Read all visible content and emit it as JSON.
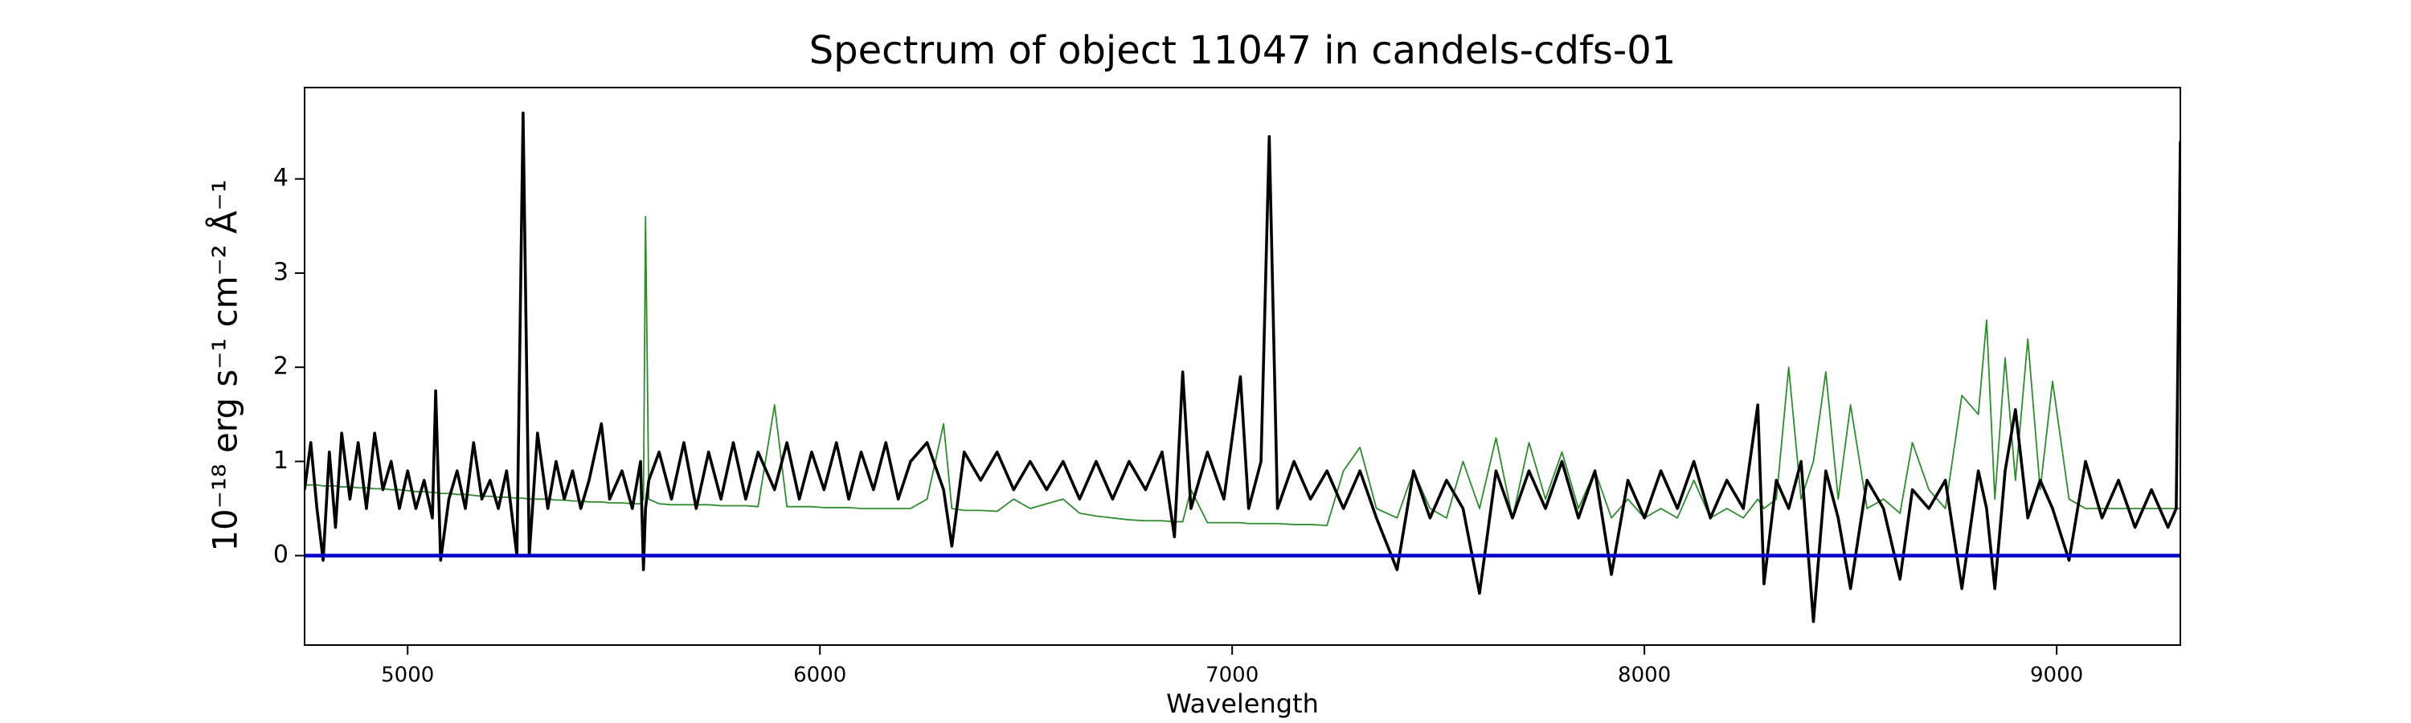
{
  "chart_data": {
    "type": "line",
    "title": "Spectrum of object 11047 in candels-cdfs-01",
    "xlabel": "Wavelength",
    "ylabel": "10⁻¹⁸ erg s⁻¹ cm⁻² Å⁻¹",
    "xlim": [
      4750,
      9300
    ],
    "ylim": [
      -0.95,
      4.97
    ],
    "xticks": [
      5000,
      6000,
      7000,
      8000,
      9000
    ],
    "yticks": [
      0,
      1,
      2,
      3,
      4
    ],
    "grid": false,
    "x": [
      4750,
      4765,
      4780,
      4795,
      4810,
      4825,
      4840,
      4860,
      4880,
      4900,
      4920,
      4940,
      4960,
      4980,
      5000,
      5020,
      5040,
      5060,
      5068,
      5080,
      5100,
      5120,
      5140,
      5160,
      5180,
      5200,
      5220,
      5240,
      5265,
      5280,
      5295,
      5315,
      5340,
      5360,
      5380,
      5400,
      5420,
      5440,
      5470,
      5490,
      5520,
      5545,
      5565,
      5572,
      5577,
      5585,
      5610,
      5640,
      5670,
      5700,
      5730,
      5760,
      5790,
      5820,
      5850,
      5890,
      5920,
      5950,
      5980,
      6010,
      6040,
      6070,
      6100,
      6130,
      6160,
      6190,
      6220,
      6260,
      6300,
      6320,
      6350,
      6390,
      6430,
      6470,
      6510,
      6550,
      6590,
      6630,
      6670,
      6710,
      6750,
      6790,
      6830,
      6860,
      6880,
      6900,
      6940,
      6980,
      7020,
      7040,
      7070,
      7090,
      7110,
      7150,
      7190,
      7230,
      7270,
      7310,
      7350,
      7400,
      7440,
      7480,
      7520,
      7560,
      7600,
      7640,
      7680,
      7720,
      7760,
      7800,
      7840,
      7880,
      7920,
      7960,
      8000,
      8040,
      8080,
      8120,
      8160,
      8200,
      8240,
      8275,
      8290,
      8320,
      8350,
      8380,
      8410,
      8440,
      8470,
      8500,
      8540,
      8580,
      8620,
      8650,
      8690,
      8730,
      8770,
      8810,
      8830,
      8850,
      8875,
      8900,
      8930,
      8960,
      8990,
      9030,
      9070,
      9110,
      9150,
      9190,
      9230,
      9270,
      9290,
      9300
    ],
    "series": [
      {
        "color": "#2e8b2e",
        "width": 1.8,
        "values": [
          0.75,
          0.75,
          0.75,
          0.74,
          0.74,
          0.74,
          0.73,
          0.73,
          0.72,
          0.72,
          0.71,
          0.71,
          0.7,
          0.7,
          0.69,
          0.68,
          0.68,
          0.67,
          0.67,
          0.66,
          0.66,
          0.65,
          0.65,
          0.64,
          0.63,
          0.63,
          0.62,
          0.62,
          0.61,
          0.61,
          0.6,
          0.6,
          0.6,
          0.59,
          0.59,
          0.58,
          0.58,
          0.57,
          0.57,
          0.56,
          0.56,
          0.55,
          0.55,
          0.6,
          3.6,
          0.6,
          0.55,
          0.54,
          0.54,
          0.54,
          0.54,
          0.53,
          0.53,
          0.53,
          0.52,
          1.6,
          0.52,
          0.52,
          0.52,
          0.51,
          0.51,
          0.51,
          0.5,
          0.5,
          0.5,
          0.5,
          0.5,
          0.6,
          1.4,
          0.5,
          0.48,
          0.48,
          0.47,
          0.6,
          0.5,
          0.55,
          0.6,
          0.45,
          0.42,
          0.4,
          0.38,
          0.37,
          0.37,
          0.36,
          0.36,
          0.7,
          0.35,
          0.35,
          0.35,
          0.34,
          0.34,
          0.34,
          0.34,
          0.33,
          0.33,
          0.32,
          0.9,
          1.15,
          0.5,
          0.4,
          0.9,
          0.5,
          0.4,
          1.0,
          0.5,
          1.25,
          0.4,
          1.2,
          0.6,
          1.1,
          0.5,
          0.9,
          0.4,
          0.6,
          0.4,
          0.5,
          0.4,
          0.8,
          0.4,
          0.5,
          0.4,
          0.6,
          0.5,
          0.6,
          2.0,
          0.6,
          1.0,
          1.95,
          0.6,
          1.6,
          0.5,
          0.6,
          0.45,
          1.2,
          0.7,
          0.5,
          1.7,
          1.5,
          2.5,
          0.6,
          2.1,
          0.8,
          2.3,
          0.7,
          1.85,
          0.6,
          0.5,
          0.5,
          0.5,
          0.5,
          0.5,
          0.5,
          0.5,
          0.5
        ]
      },
      {
        "color": "#000000",
        "width": 3.6,
        "values": [
          0.7,
          1.2,
          0.5,
          -0.05,
          1.1,
          0.3,
          1.3,
          0.6,
          1.2,
          0.5,
          1.3,
          0.7,
          1.0,
          0.5,
          0.9,
          0.5,
          0.8,
          0.4,
          1.75,
          -0.05,
          0.6,
          0.9,
          0.5,
          1.2,
          0.6,
          0.8,
          0.5,
          0.9,
          0.0,
          4.7,
          0.0,
          1.3,
          0.5,
          1.0,
          0.6,
          0.9,
          0.5,
          0.8,
          1.4,
          0.6,
          0.9,
          0.5,
          1.0,
          -0.15,
          0.5,
          0.8,
          1.1,
          0.6,
          1.2,
          0.5,
          1.1,
          0.6,
          1.2,
          0.6,
          1.1,
          0.7,
          1.2,
          0.6,
          1.1,
          0.7,
          1.2,
          0.6,
          1.1,
          0.7,
          1.2,
          0.6,
          1.0,
          1.2,
          0.7,
          0.1,
          1.1,
          0.8,
          1.1,
          0.7,
          1.0,
          0.7,
          1.0,
          0.6,
          1.0,
          0.6,
          1.0,
          0.7,
          1.1,
          0.2,
          1.95,
          0.5,
          1.1,
          0.6,
          1.9,
          0.5,
          1.0,
          4.45,
          0.5,
          1.0,
          0.6,
          0.9,
          0.5,
          0.9,
          0.4,
          -0.15,
          0.9,
          0.4,
          0.8,
          0.5,
          -0.4,
          0.9,
          0.4,
          0.9,
          0.5,
          1.0,
          0.4,
          0.9,
          -0.2,
          0.8,
          0.4,
          0.9,
          0.5,
          1.0,
          0.4,
          0.8,
          0.5,
          1.6,
          -0.3,
          0.8,
          0.5,
          1.0,
          -0.7,
          0.9,
          0.4,
          -0.35,
          0.8,
          0.5,
          -0.25,
          0.7,
          0.5,
          0.8,
          -0.35,
          0.9,
          0.5,
          -0.35,
          0.9,
          1.55,
          0.4,
          0.8,
          0.5,
          -0.05,
          1.0,
          0.4,
          0.8,
          0.3,
          0.7,
          0.3,
          0.5,
          4.4
        ]
      },
      {
        "color": "#0000cc",
        "width": 4.5,
        "x": [
          4750,
          9300
        ],
        "values": [
          0,
          0
        ]
      }
    ]
  }
}
